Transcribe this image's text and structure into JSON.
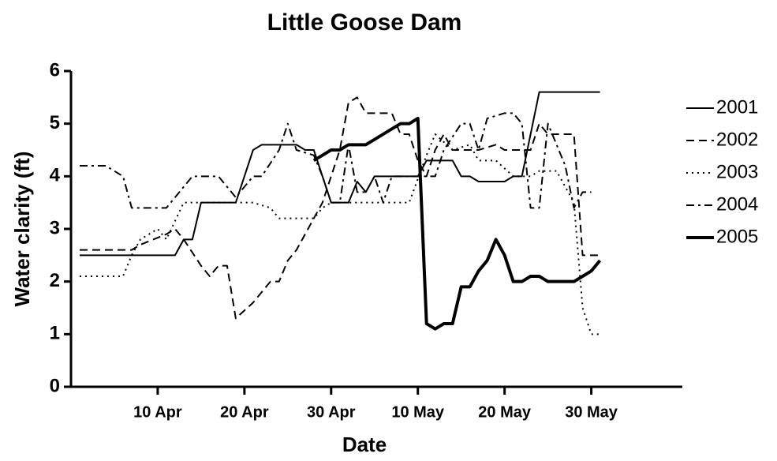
{
  "chart_data": {
    "type": "line",
    "title": "Little Goose Dam",
    "x_label": "Date",
    "y_label": "Water clarity  (ft)",
    "xlim": [
      90,
      160.5
    ],
    "ylim": [
      0,
      6
    ],
    "xticks": [
      {
        "value": 100,
        "label": "10 Apr"
      },
      {
        "value": 110,
        "label": "20 Apr"
      },
      {
        "value": 120,
        "label": "30 Apr"
      },
      {
        "value": 130,
        "label": "10 May"
      },
      {
        "value": 140,
        "label": "20 May"
      },
      {
        "value": 150,
        "label": "30 May"
      }
    ],
    "yticks": [
      0,
      1,
      2,
      3,
      4,
      5,
      6
    ],
    "grid": false,
    "legend": "right",
    "series": [
      {
        "name": "2001",
        "color": "#000000",
        "dash": "solid",
        "width": 2,
        "x": [
          91,
          102,
          103,
          104,
          105,
          109,
          111,
          112,
          116,
          117,
          118,
          120,
          122,
          123,
          124,
          125,
          130,
          131,
          134,
          135,
          136,
          137,
          140,
          141,
          142,
          144,
          151
        ],
        "values": [
          2.5,
          2.5,
          2.8,
          2.8,
          3.5,
          3.5,
          4.5,
          4.6,
          4.6,
          4.5,
          4.5,
          3.5,
          3.5,
          3.9,
          3.7,
          4.0,
          4.0,
          4.3,
          4.3,
          4.0,
          4.0,
          3.9,
          3.9,
          4.0,
          4.0,
          5.6,
          5.6
        ]
      },
      {
        "name": "2002",
        "color": "#000000",
        "dash": "dashed",
        "width": 2,
        "x": [
          91,
          97,
          98,
          101,
          102,
          103,
          105,
          106,
          107,
          108,
          109,
          111,
          113,
          114,
          115,
          116,
          118,
          119,
          121,
          122,
          123,
          124,
          127,
          128,
          129,
          130,
          131,
          132,
          133,
          134,
          137,
          139,
          140,
          143,
          144,
          145,
          148,
          149,
          151
        ],
        "values": [
          2.6,
          2.6,
          2.7,
          2.9,
          3.0,
          2.8,
          2.3,
          2.1,
          2.3,
          2.3,
          1.3,
          1.6,
          2.0,
          2.0,
          2.4,
          2.6,
          3.2,
          3.5,
          4.5,
          5.4,
          5.5,
          5.2,
          5.2,
          4.8,
          4.8,
          4.3,
          4.0,
          4.5,
          4.8,
          4.5,
          4.5,
          4.6,
          4.5,
          4.5,
          5.0,
          4.8,
          4.8,
          2.5,
          2.5
        ]
      },
      {
        "name": "2003",
        "color": "#000000",
        "dash": "dotted",
        "width": 2,
        "x": [
          91,
          96,
          97,
          98,
          100,
          101,
          103,
          111,
          113,
          114,
          118,
          119,
          120,
          129,
          131,
          132,
          134,
          136,
          137,
          139,
          141,
          143,
          144,
          146,
          148,
          149,
          150,
          151
        ],
        "values": [
          2.1,
          2.1,
          2.5,
          2.8,
          3.0,
          2.8,
          3.5,
          3.5,
          3.4,
          3.2,
          3.2,
          3.4,
          3.5,
          3.5,
          4.4,
          4.8,
          4.5,
          4.6,
          4.3,
          4.3,
          4.0,
          4.0,
          4.1,
          4.1,
          3.5,
          1.5,
          1.0,
          1.0
        ]
      },
      {
        "name": "2004",
        "color": "#000000",
        "dash": "dashdot",
        "width": 2,
        "x": [
          91,
          94,
          96,
          97,
          101,
          102,
          103,
          104,
          107,
          109,
          111,
          112,
          114,
          115,
          116,
          118,
          119,
          120,
          121,
          122,
          123,
          124,
          125,
          126,
          127,
          130,
          132,
          133,
          135,
          136,
          137,
          138,
          140,
          141,
          142,
          143,
          144,
          145,
          147,
          148,
          149,
          150
        ],
        "values": [
          4.2,
          4.2,
          4.0,
          3.4,
          3.4,
          3.6,
          3.8,
          4.0,
          4.0,
          3.6,
          4.0,
          4.0,
          4.5,
          5.0,
          4.5,
          4.4,
          4.0,
          3.5,
          3.5,
          4.6,
          3.7,
          3.7,
          4.0,
          3.5,
          4.0,
          4.0,
          4.0,
          4.5,
          5.0,
          5.0,
          4.5,
          5.1,
          5.2,
          5.2,
          5.0,
          3.4,
          3.4,
          5.0,
          4.2,
          3.4,
          3.7,
          3.7
        ]
      },
      {
        "name": "2005",
        "color": "#000000",
        "dash": "solid",
        "width": 4,
        "x": [
          118,
          119,
          120,
          121,
          122,
          124,
          125,
          127,
          128,
          129,
          130,
          131,
          132,
          133,
          134,
          135,
          136,
          137,
          138,
          139,
          140,
          141,
          142,
          143,
          144,
          145,
          148,
          149,
          150,
          151
        ],
        "values": [
          4.3,
          4.4,
          4.5,
          4.5,
          4.6,
          4.6,
          4.7,
          4.9,
          5.0,
          5.0,
          5.1,
          1.2,
          1.1,
          1.2,
          1.2,
          1.9,
          1.9,
          2.2,
          2.4,
          2.8,
          2.5,
          2.0,
          2.0,
          2.1,
          2.1,
          2.0,
          2.0,
          2.1,
          2.2,
          2.4
        ]
      }
    ]
  }
}
